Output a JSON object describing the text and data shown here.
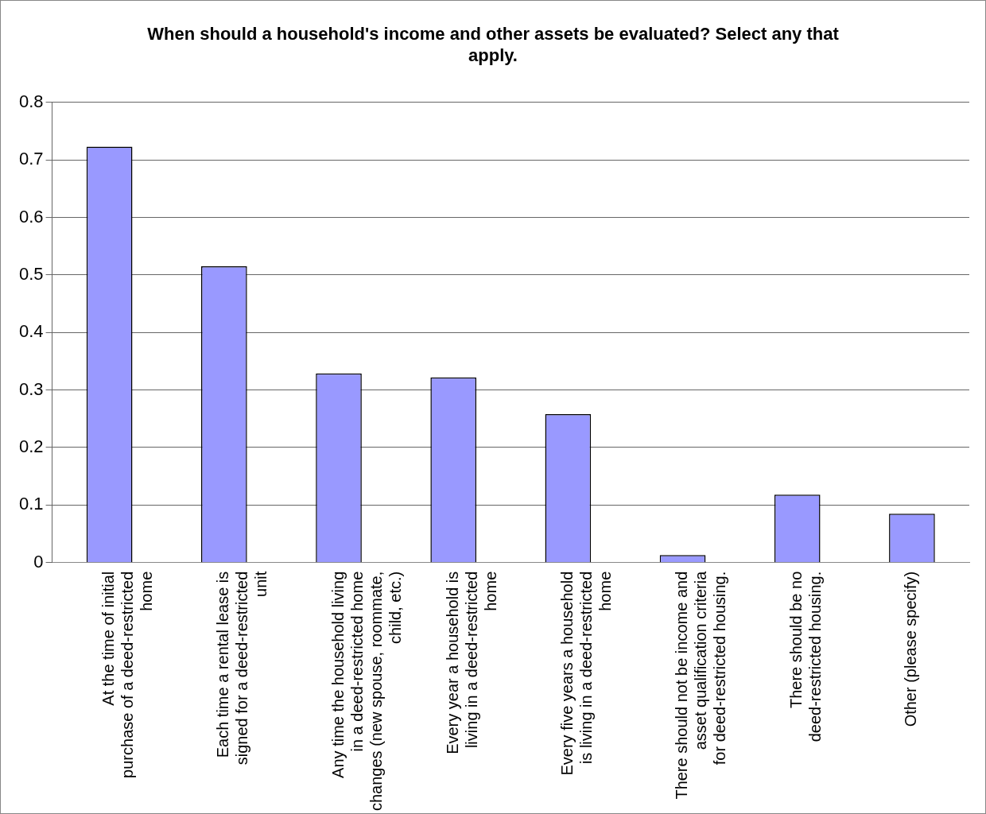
{
  "chart_data": {
    "type": "bar",
    "title": "When should a household's income and other assets be evaluated? Select any that apply.",
    "categories": [
      "At the time of initial purchase of a deed-restricted home",
      "Each time a rental lease is signed for a deed-restricted unit",
      "Any time the household living in a deed-restricted home changes (new spouse, roommate, child, etc.)",
      "Every year a household is living in a deed-restricted home",
      "Every five years a household is living in a deed-restricted home",
      "There should not be income and asset qualification criteria for deed-restricted housing.",
      "There should be no deed-restricted housing.",
      "Other (please specify)"
    ],
    "values": [
      0.723,
      0.515,
      0.329,
      0.322,
      0.258,
      0.013,
      0.118,
      0.085
    ],
    "color": "#9999ff",
    "ylim": [
      0,
      0.8
    ],
    "yticks": [
      0,
      0.1,
      0.2,
      0.3,
      0.4,
      0.5,
      0.6,
      0.7,
      0.8
    ],
    "grid": "y",
    "legend": false
  }
}
